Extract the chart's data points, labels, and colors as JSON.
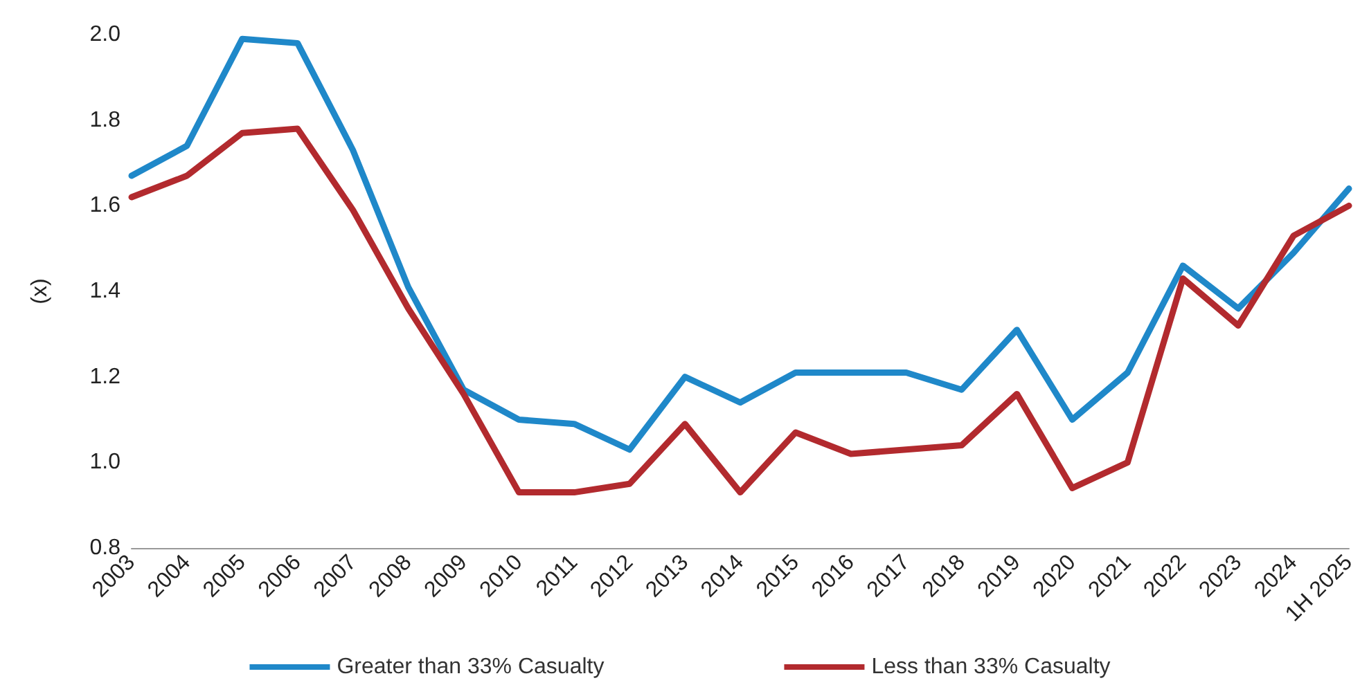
{
  "chart_data": {
    "type": "line",
    "ylabel": "(x)",
    "categories": [
      "2003",
      "2004",
      "2005",
      "2006",
      "2007",
      "2008",
      "2009",
      "2010",
      "2011",
      "2012",
      "2013",
      "2014",
      "2015",
      "2016",
      "2017",
      "2018",
      "2019",
      "2020",
      "2021",
      "2022",
      "2023",
      "2024",
      "1H 2025"
    ],
    "series": [
      {
        "name": "Greater than 33% Casualty",
        "color": "#1f88c9",
        "values": [
          1.67,
          1.74,
          1.99,
          1.98,
          1.73,
          1.41,
          1.17,
          1.1,
          1.09,
          1.03,
          1.2,
          1.14,
          1.21,
          1.21,
          1.21,
          1.17,
          1.31,
          1.1,
          1.21,
          1.46,
          1.36,
          1.49,
          1.64
        ]
      },
      {
        "name": "Less than 33% Casualty",
        "color": "#b22a2e",
        "values": [
          1.62,
          1.67,
          1.77,
          1.78,
          1.59,
          1.36,
          1.16,
          0.93,
          0.93,
          0.95,
          1.09,
          0.93,
          1.07,
          1.02,
          1.03,
          1.04,
          1.16,
          0.94,
          1.0,
          1.43,
          1.32,
          1.53,
          1.6
        ]
      }
    ],
    "ylim": [
      0.8,
      2.0
    ],
    "yticks": [
      {
        "value": 0.8,
        "label": "0.8"
      },
      {
        "value": 1,
        "label": "1.0"
      },
      {
        "value": 1.2,
        "label": "1.2"
      },
      {
        "value": 1.4,
        "label": "1.4"
      },
      {
        "value": 1.6,
        "label": "1.6"
      },
      {
        "value": 1.8,
        "label": "1.8"
      },
      {
        "value": 2,
        "label": "2.0"
      }
    ],
    "grid": false,
    "legend": "bottom",
    "marker": "none",
    "line_style": "solid"
  }
}
